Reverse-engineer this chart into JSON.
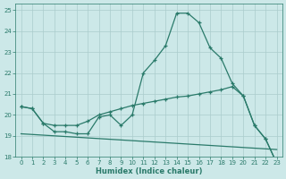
{
  "xlabel": "Humidex (Indice chaleur)",
  "xlim": [
    -0.5,
    23.5
  ],
  "ylim": [
    18,
    25.3
  ],
  "xticks": [
    0,
    1,
    2,
    3,
    4,
    5,
    6,
    7,
    8,
    9,
    10,
    11,
    12,
    13,
    14,
    15,
    16,
    17,
    18,
    19,
    20,
    21,
    22,
    23
  ],
  "yticks": [
    18,
    19,
    20,
    21,
    22,
    23,
    24,
    25
  ],
  "bg_color": "#cce8e8",
  "grid_color": "#aacccc",
  "line_color": "#2a7a6a",
  "curve1_x": [
    0,
    1,
    2,
    3,
    4,
    5,
    6,
    7,
    8,
    9,
    10,
    11,
    12,
    13,
    14,
    15,
    16,
    17,
    18,
    19,
    20,
    21,
    22,
    23
  ],
  "curve1_y": [
    20.4,
    20.3,
    19.6,
    19.2,
    19.2,
    19.1,
    19.1,
    19.9,
    20.0,
    19.5,
    20.0,
    22.0,
    22.6,
    23.3,
    24.85,
    24.85,
    24.4,
    23.2,
    22.7,
    21.5,
    20.9,
    19.5,
    18.85,
    17.7
  ],
  "curve2_x": [
    0,
    1,
    2,
    3,
    4,
    5,
    6,
    7,
    8,
    9,
    10,
    11,
    12,
    13,
    14,
    15,
    16,
    17,
    18,
    19,
    20,
    21,
    22,
    23
  ],
  "curve2_y": [
    20.4,
    20.3,
    19.6,
    19.5,
    19.5,
    19.5,
    19.7,
    20.0,
    20.15,
    20.3,
    20.45,
    20.55,
    20.65,
    20.75,
    20.85,
    20.9,
    21.0,
    21.1,
    21.2,
    21.35,
    20.9,
    19.5,
    18.85,
    17.7
  ],
  "line3_x": [
    0,
    23
  ],
  "line3_y": [
    19.1,
    18.35
  ]
}
